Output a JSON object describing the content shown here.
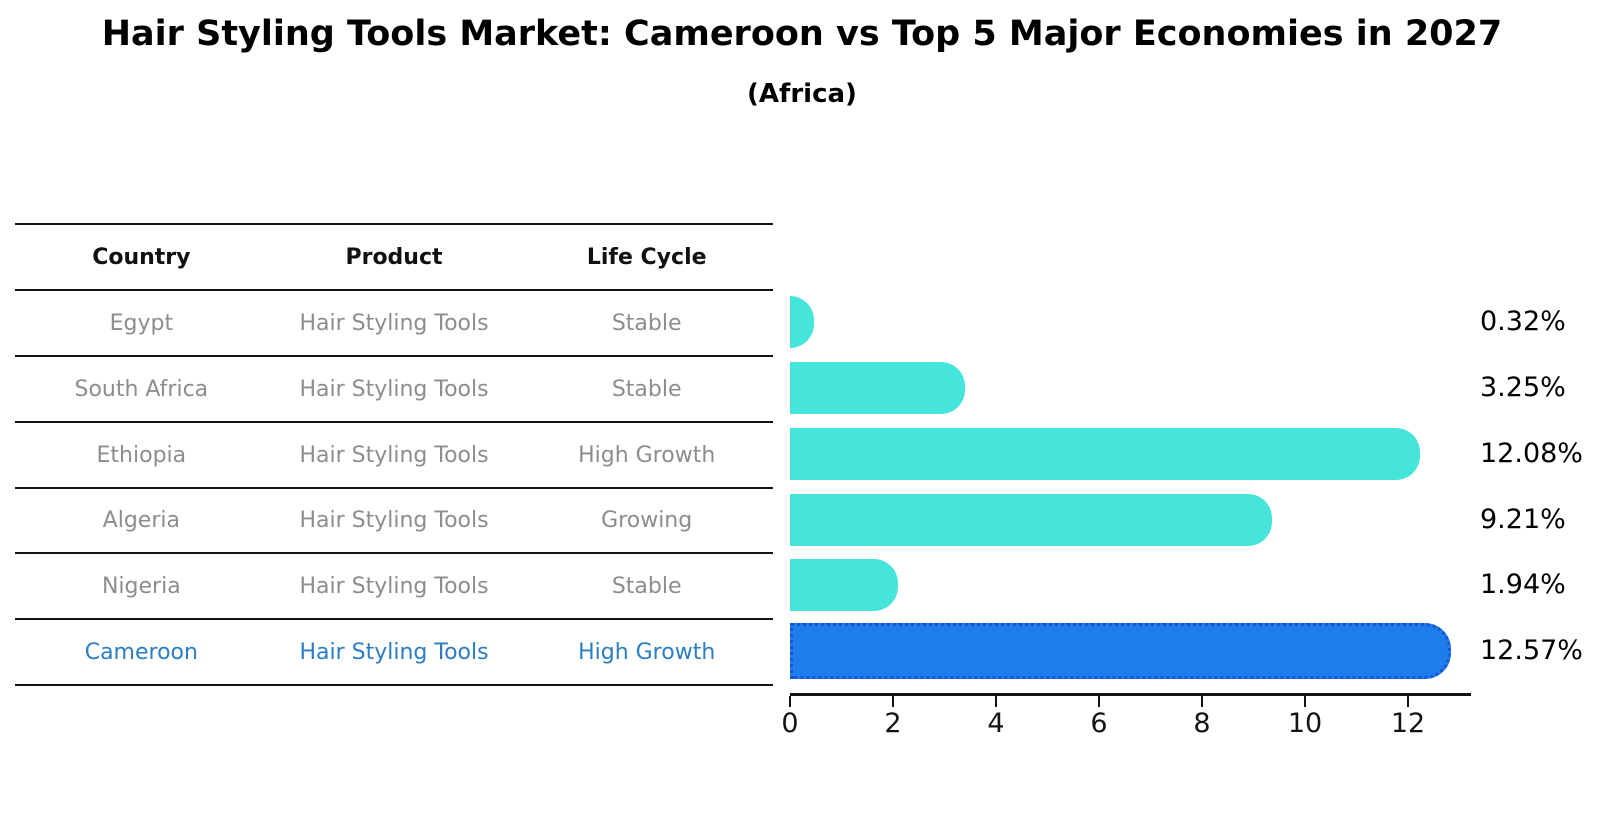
{
  "title": "Hair Styling Tools Market: Cameroon vs Top 5 Major Economies in 2027",
  "subtitle": "(Africa)",
  "colors": {
    "bar_default": "#45e5dc",
    "bar_highlight": "#1e7ceb",
    "bar_highlight_edge": "#1456d8",
    "highlight_text": "#2b7dc4",
    "row_text": "#8d8d8d",
    "header_text": "#111111",
    "axis": "#141414"
  },
  "table": {
    "headers": [
      "Country",
      "Product",
      "Life Cycle"
    ],
    "rows": [
      {
        "country": "Egypt",
        "product": "Hair Styling Tools",
        "life_cycle": "Stable",
        "highlight": false
      },
      {
        "country": "South Africa",
        "product": "Hair Styling Tools",
        "life_cycle": "Stable",
        "highlight": false
      },
      {
        "country": "Ethiopia",
        "product": "Hair Styling Tools",
        "life_cycle": "High Growth",
        "highlight": false
      },
      {
        "country": "Algeria",
        "product": "Hair Styling Tools",
        "life_cycle": "Growing",
        "highlight": false
      },
      {
        "country": "Nigeria",
        "product": "Hair Styling Tools",
        "life_cycle": "Stable",
        "highlight": false
      },
      {
        "country": "Cameroon",
        "product": "Hair Styling Tools",
        "life_cycle": "High Growth",
        "highlight": true
      }
    ]
  },
  "chart_data": {
    "type": "bar",
    "orientation": "horizontal",
    "title": "Hair Styling Tools Market: Cameroon vs Top 5 Major Economies in 2027",
    "subtitle": "(Africa)",
    "categories": [
      "Egypt",
      "South Africa",
      "Ethiopia",
      "Algeria",
      "Nigeria",
      "Cameroon"
    ],
    "values": [
      0.32,
      3.25,
      12.08,
      9.21,
      1.94,
      12.57
    ],
    "value_labels": [
      "0.32%",
      "3.25%",
      "12.08%",
      "9.21%",
      "1.94%",
      "12.57%"
    ],
    "highlight_index": 5,
    "xlabel": "",
    "ylabel": "",
    "xlim": [
      0,
      13.2
    ],
    "xticks": [
      0,
      2,
      4,
      6,
      8,
      10,
      12
    ],
    "grid": false,
    "legend": false
  }
}
